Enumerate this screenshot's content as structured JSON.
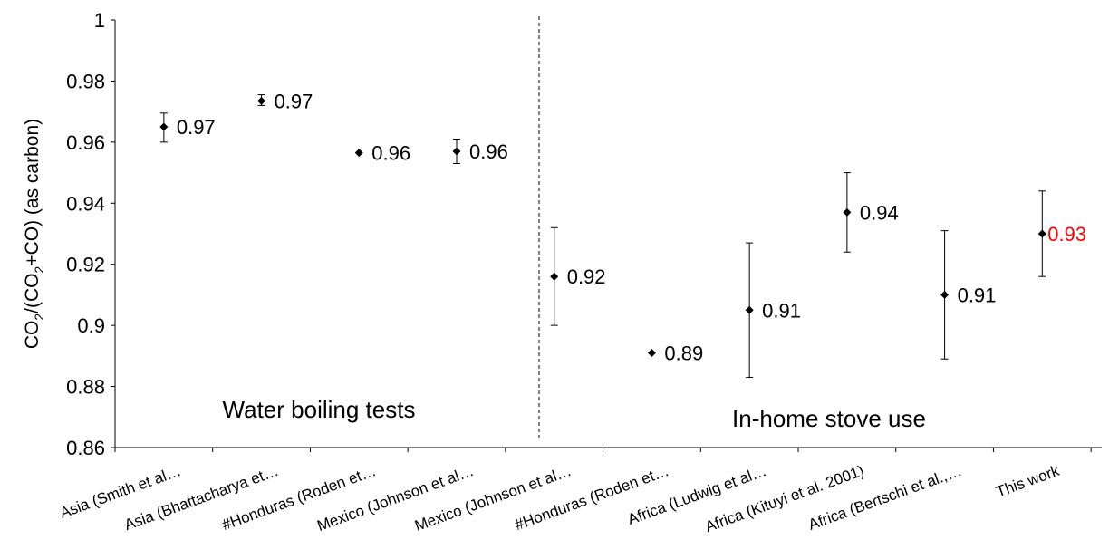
{
  "chart_data": {
    "type": "scatter",
    "title": "",
    "xlabel": "",
    "ylabel_parts": [
      "CO",
      "2",
      "/(CO",
      "2",
      "+CO) (as carbon)"
    ],
    "ylim": [
      0.86,
      1.0
    ],
    "yticks": [
      0.86,
      0.88,
      0.9,
      0.92,
      0.94,
      0.96,
      0.98,
      1
    ],
    "ytick_labels": [
      "0.86",
      "0.88",
      "0.9",
      "0.92",
      "0.94",
      "0.96",
      "0.98",
      "1"
    ],
    "grid": false,
    "categories": [
      "Asia (Smith et al…",
      "Asia (Bhattacharya et…",
      "#Honduras (Roden et…",
      "Mexico (Johnson et al…",
      "Mexico (Johnson et al…",
      "#Honduras (Roden et…",
      "Africa (Ludwig et al…",
      "Africa (Kituyi et al. 2001)",
      "Africa (Bertschi et al.,…",
      "This work"
    ],
    "series": [
      {
        "values": [
          0.965,
          0.9735,
          0.9565,
          0.957,
          0.916,
          0.891,
          0.905,
          0.937,
          0.91,
          0.93
        ],
        "error_low": [
          0.96,
          0.972,
          null,
          0.953,
          0.9,
          null,
          0.883,
          0.924,
          0.889,
          0.916
        ],
        "error_high": [
          0.9695,
          0.9755,
          null,
          0.961,
          0.932,
          null,
          0.927,
          0.95,
          0.931,
          0.944
        ],
        "labels": [
          "0.97",
          "0.97",
          "0.96",
          "0.96",
          "0.92",
          "0.89",
          "0.91",
          "0.94",
          "0.91",
          "0.93"
        ]
      }
    ],
    "highlight_label_index": 9,
    "highlight_color": "#ff0000",
    "marker_color": "#000000",
    "divider_after_index": 3,
    "annotations": [
      "Water boiling tests",
      "In-home stove use"
    ]
  }
}
